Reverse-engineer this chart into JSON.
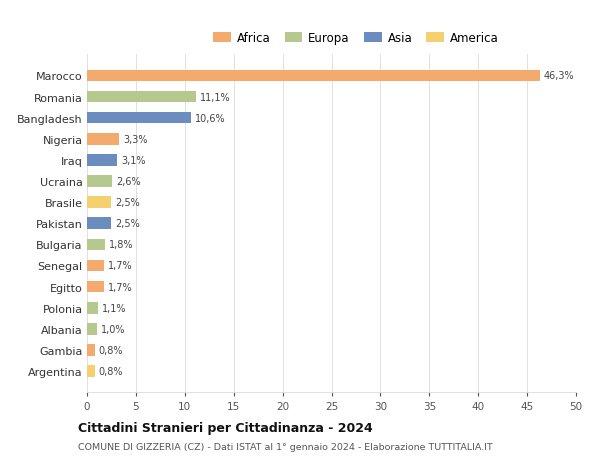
{
  "countries": [
    "Marocco",
    "Romania",
    "Bangladesh",
    "Nigeria",
    "Iraq",
    "Ucraina",
    "Brasile",
    "Pakistan",
    "Bulgaria",
    "Senegal",
    "Egitto",
    "Polonia",
    "Albania",
    "Gambia",
    "Argentina"
  ],
  "values": [
    46.3,
    11.1,
    10.6,
    3.3,
    3.1,
    2.6,
    2.5,
    2.5,
    1.8,
    1.7,
    1.7,
    1.1,
    1.0,
    0.8,
    0.8
  ],
  "labels": [
    "46,3%",
    "11,1%",
    "10,6%",
    "3,3%",
    "3,1%",
    "2,6%",
    "2,5%",
    "2,5%",
    "1,8%",
    "1,7%",
    "1,7%",
    "1,1%",
    "1,0%",
    "0,8%",
    "0,8%"
  ],
  "colors": [
    "#F4A96D",
    "#B5C98E",
    "#6B8CBE",
    "#F4A96D",
    "#6B8CBE",
    "#B5C98E",
    "#F5D06E",
    "#6B8CBE",
    "#B5C98E",
    "#F4A96D",
    "#F4A96D",
    "#B5C98E",
    "#B5C98E",
    "#F4A96D",
    "#F5D06E"
  ],
  "continent": [
    "Africa",
    "Europa",
    "Asia",
    "Africa",
    "Asia",
    "Europa",
    "America",
    "Asia",
    "Europa",
    "Africa",
    "Africa",
    "Europa",
    "Europa",
    "Africa",
    "America"
  ],
  "legend_labels": [
    "Africa",
    "Europa",
    "Asia",
    "America"
  ],
  "legend_colors": [
    "#F4A96D",
    "#B5C98E",
    "#6B8CBE",
    "#F5D06E"
  ],
  "title": "Cittadini Stranieri per Cittadinanza - 2024",
  "subtitle": "COMUNE DI GIZZERIA (CZ) - Dati ISTAT al 1° gennaio 2024 - Elaborazione TUTTITALIA.IT",
  "xlim": [
    0,
    50
  ],
  "xticks": [
    0,
    5,
    10,
    15,
    20,
    25,
    30,
    35,
    40,
    45,
    50
  ],
  "background_color": "#ffffff",
  "grid_color": "#e0e0e0"
}
